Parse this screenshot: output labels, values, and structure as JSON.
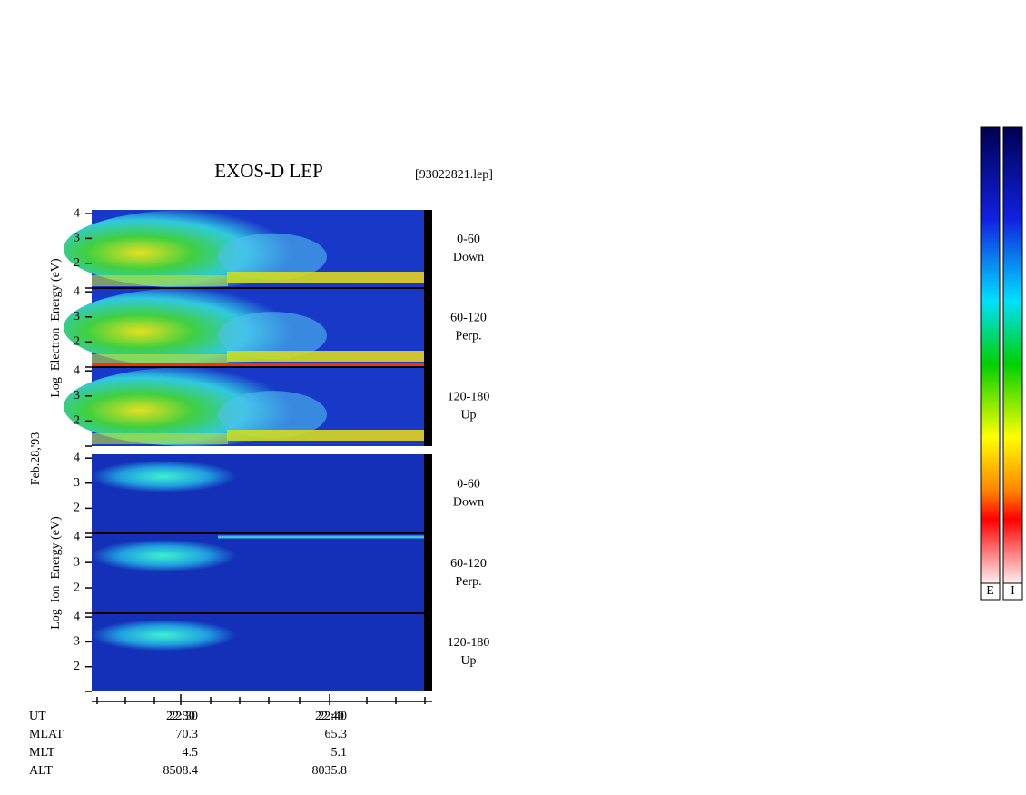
{
  "title": "EXOS-D LEP",
  "file": "[93022821.lep]",
  "date": "Feb.28,'93",
  "species": [
    {
      "label": "Log  Electron  Energy (eV)",
      "panels": [
        {
          "angle": "0-60",
          "direction": "Down"
        },
        {
          "angle": "60-120",
          "direction": "Perp."
        },
        {
          "angle": "120-180",
          "direction": "Up"
        }
      ]
    },
    {
      "label": "Log  Ion  Energy (eV)",
      "panels": [
        {
          "angle": "0-60",
          "direction": "Down"
        },
        {
          "angle": "60-120",
          "direction": "Perp."
        },
        {
          "angle": "120-180",
          "direction": "Up"
        }
      ]
    }
  ],
  "ylim": [
    1,
    4.15
  ],
  "yticks": [
    2,
    3,
    4
  ],
  "time_ticks": [
    "22:30",
    "22:40"
  ],
  "ephemeris": [
    {
      "name": "UT",
      "values": [
        "22:30",
        "22:40"
      ]
    },
    {
      "name": "MLAT",
      "values": [
        70.3,
        65.3
      ]
    },
    {
      "name": "MLT",
      "values": [
        4.5,
        5.1
      ]
    },
    {
      "name": "ALT",
      "values": [
        8508.4,
        8035.8
      ]
    }
  ],
  "colorbar_labels": [
    "E",
    "I"
  ]
}
